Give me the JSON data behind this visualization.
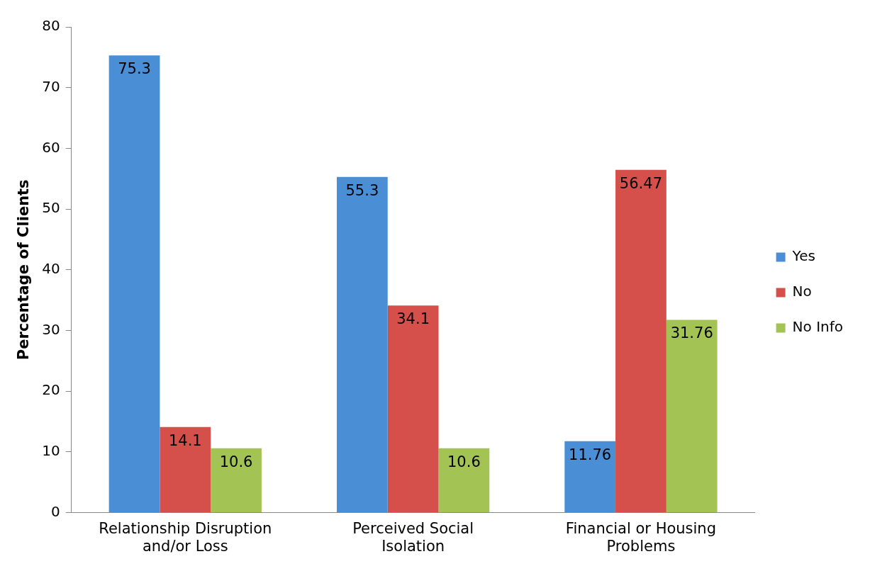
{
  "chart_data": {
    "type": "bar",
    "ylabel": "Percentage of Clients",
    "categories": [
      "Relationship Disruption and/or Loss",
      "Perceived Social Isolation",
      "Financial or Housing Problems"
    ],
    "series": [
      {
        "name": "Yes",
        "color": "#4a8fd6",
        "values": [
          75.3,
          55.3,
          11.76
        ]
      },
      {
        "name": "No",
        "color": "#d5504a",
        "values": [
          14.1,
          34.1,
          56.47
        ]
      },
      {
        "name": "No Info",
        "color": "#a3c455",
        "values": [
          10.6,
          10.6,
          31.76
        ]
      }
    ],
    "ylim": [
      0,
      80
    ],
    "yticks": [
      0,
      10,
      20,
      30,
      40,
      50,
      60,
      70,
      80
    ],
    "grid": false,
    "legend": "right",
    "data_labels": true
  }
}
